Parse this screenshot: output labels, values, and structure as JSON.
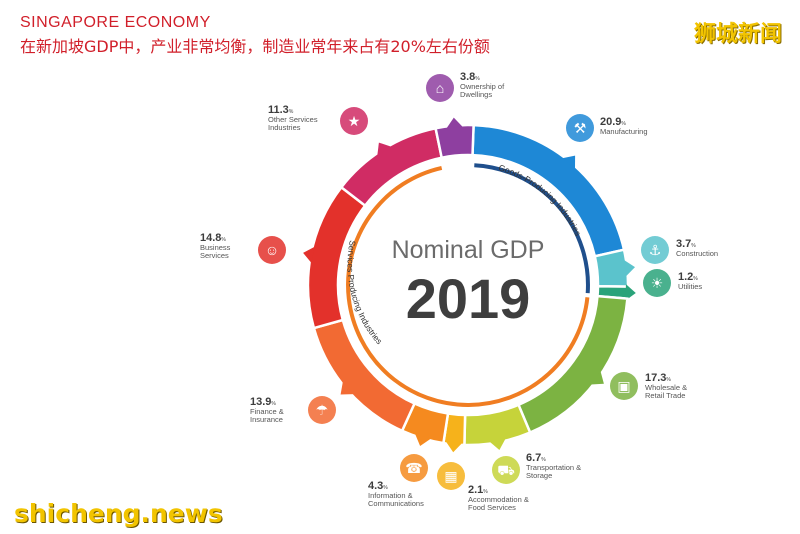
{
  "header": {
    "title_en": "SINGAPORE ECONOMY",
    "title_zh": "在新加坡GDP中，产业非常均衡，制造业常年来占有20%左右份额"
  },
  "brand": {
    "top": "狮城新闻",
    "bottom": "shicheng.news"
  },
  "chart_data": {
    "type": "pie",
    "title": "Nominal GDP",
    "subtitle": "2019",
    "unit": "%",
    "groups": [
      {
        "label": "Goods-Producing Industries",
        "segments": [
          "Manufacturing",
          "Construction",
          "Utilities"
        ]
      },
      {
        "label": "Services Producing Industries",
        "segments": [
          "Wholesale & Retail Trade",
          "Transportation & Storage",
          "Accommodation & Food Services",
          "Information & Communications",
          "Finance & Insurance",
          "Business Services",
          "Other Services Industries"
        ]
      }
    ],
    "slices": [
      {
        "name": "Manufacturing",
        "value": 20.9,
        "color": "#1e88d6",
        "icon": "factory-icon"
      },
      {
        "name": "Construction",
        "value": 3.7,
        "color": "#5bc3cc",
        "icon": "crane-icon"
      },
      {
        "name": "Utilities",
        "value": 1.2,
        "color": "#2aa37a",
        "icon": "bulb-icon"
      },
      {
        "name": "Wholesale & Retail Trade",
        "value": 17.3,
        "color": "#7cb342",
        "icon": "store-icon"
      },
      {
        "name": "Transportation & Storage",
        "value": 6.7,
        "color": "#c6d33a",
        "icon": "truck-icon"
      },
      {
        "name": "Accommodation & Food Services",
        "value": 2.1,
        "color": "#f6b21b",
        "icon": "building-icon"
      },
      {
        "name": "Information & Communications",
        "value": 4.3,
        "color": "#f58a1f",
        "icon": "phone-icon"
      },
      {
        "name": "Finance & Insurance",
        "value": 13.9,
        "color": "#f26a33",
        "icon": "umbrella-icon"
      },
      {
        "name": "Business Services",
        "value": 14.8,
        "color": "#e3312b",
        "icon": "businessman-icon"
      },
      {
        "name": "Other Services Industries",
        "value": 11.3,
        "color": "#d02c64",
        "icon": "star-icon"
      },
      {
        "name": "Ownership of Dwellings",
        "value": 3.8,
        "color": "#8e3fa0",
        "icon": "house-icon"
      }
    ],
    "labels": [
      {
        "value": "20.9",
        "pct": "%",
        "lines": [
          "Manufacturing"
        ]
      },
      {
        "value": "3.7",
        "pct": "%",
        "lines": [
          "Construction"
        ]
      },
      {
        "value": "1.2",
        "pct": "%",
        "lines": [
          "Utilities"
        ]
      },
      {
        "value": "17.3",
        "pct": "%",
        "lines": [
          "Wholesale &",
          "Retail Trade"
        ]
      },
      {
        "value": "6.7",
        "pct": "%",
        "lines": [
          "Transportation &",
          "Storage"
        ]
      },
      {
        "value": "2.1",
        "pct": "%",
        "lines": [
          "Accommodation &",
          "Food Services"
        ]
      },
      {
        "value": "4.3",
        "pct": "%",
        "lines": [
          "Information &",
          "Communications"
        ]
      },
      {
        "value": "13.9",
        "pct": "%",
        "lines": [
          "Finance &",
          "Insurance"
        ]
      },
      {
        "value": "14.8",
        "pct": "%",
        "lines": [
          "Business",
          "Services"
        ]
      },
      {
        "value": "11.3",
        "pct": "%",
        "lines": [
          "Other Services",
          "Industries"
        ]
      },
      {
        "value": "3.8",
        "pct": "%",
        "lines": [
          "Ownership of",
          "Dwellings"
        ]
      }
    ]
  }
}
